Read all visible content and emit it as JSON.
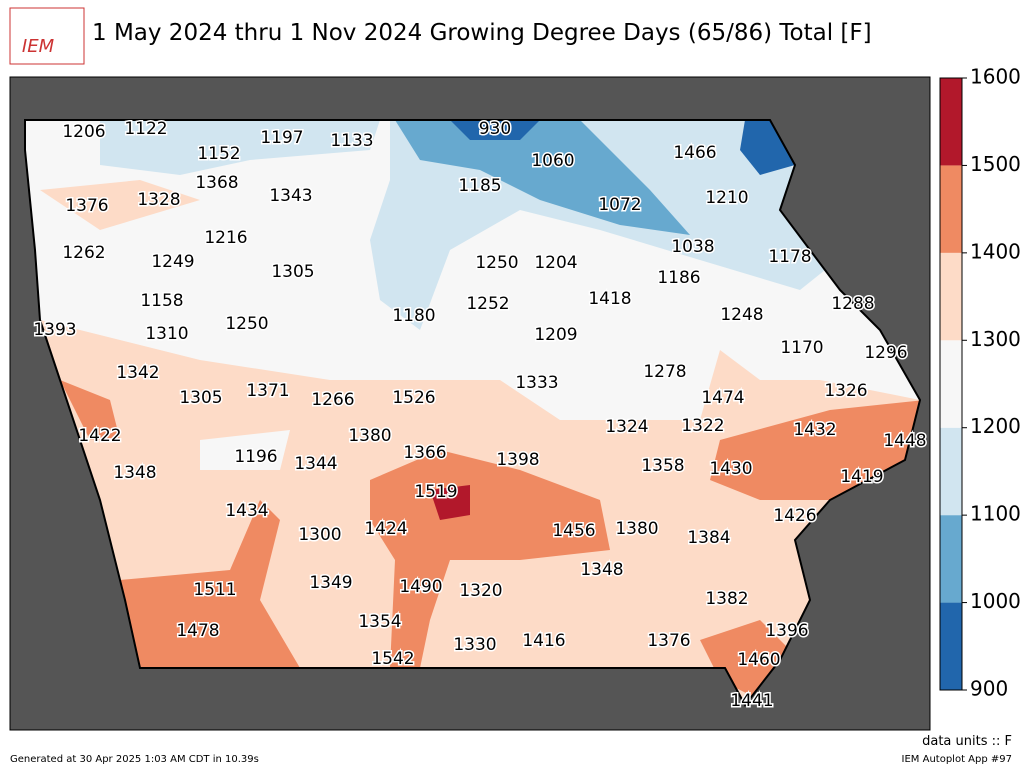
{
  "header": {
    "logo": "IEM",
    "title": "1 May 2024 thru 1 Nov 2024 Growing Degree Days (65/86) Total [F]"
  },
  "stations": [
    1206,
    1122,
    1197,
    1133,
    930,
    1060,
    1466,
    1152,
    1368,
    1185,
    1376,
    1328,
    1343,
    1072,
    1210,
    1216,
    1038,
    1262,
    1249,
    1305,
    1250,
    1204,
    1186,
    1178,
    1418,
    1158,
    1252,
    1288,
    1250,
    1180,
    1248,
    1393,
    1310,
    1209,
    1170,
    1296,
    1342,
    1278,
    1333,
    1305,
    1371,
    1266,
    1526,
    1474,
    1326,
    1422,
    1380,
    1324,
    1322,
    1432,
    1448,
    1366,
    1398,
    1196,
    1344,
    1348,
    1358,
    1430,
    1419,
    1519,
    1434,
    1426,
    1456,
    1380,
    1424,
    1300,
    1384,
    1348,
    1511,
    1349,
    1490,
    1320,
    1382,
    1354,
    1396,
    1478,
    1416,
    1330,
    1376,
    1460,
    1542,
    1441
  ],
  "colorbar": {
    "ticks": [
      900,
      1000,
      1100,
      1200,
      1300,
      1400,
      1500,
      1600
    ],
    "colors": [
      "#2166ac",
      "#67a9cf",
      "#d1e5f0",
      "#f7f7f7",
      "#fddbc7",
      "#ef8a62",
      "#b2182b"
    ]
  },
  "footer": {
    "units": "data units :: F",
    "generated": "Generated at 30 Apr 2025 1:03 AM CDT in 10.39s",
    "app": "IEM Autoplot App #97"
  }
}
